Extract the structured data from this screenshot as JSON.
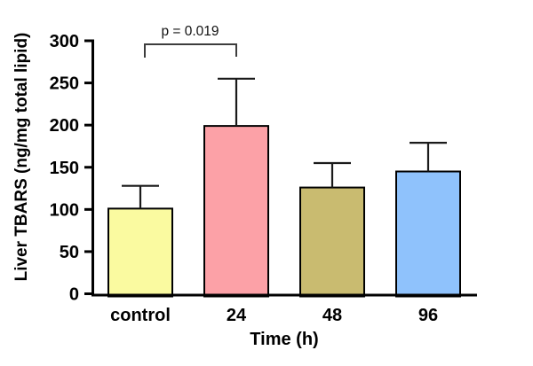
{
  "chart_data": {
    "type": "bar",
    "title": "",
    "categories": [
      "control",
      "24",
      "48",
      "96"
    ],
    "values": [
      101,
      199,
      126,
      145
    ],
    "errors_plus": [
      27,
      56,
      29,
      34
    ],
    "error_bar_style": "sd-upper-only",
    "bar_colors": [
      "#FAFAA0",
      "#FCA1A7",
      "#C9BB70",
      "#8FC2FC"
    ],
    "bar_border_color": "#000000",
    "axis_color": "#000000",
    "error_bar_color": "#1a1a1a",
    "bracket_color": "#3d3d3d",
    "xlabel": "Time (h)",
    "ylabel": "Liver TBARS (ng/mg total lipid)",
    "ylim": [
      0,
      300
    ],
    "ytick_step": 50,
    "yticks": [
      0,
      50,
      100,
      150,
      200,
      250,
      300
    ],
    "grid": false,
    "legend": null,
    "annotation": {
      "text": "p = 0.019",
      "from_category": "control",
      "to_category": "24"
    }
  }
}
